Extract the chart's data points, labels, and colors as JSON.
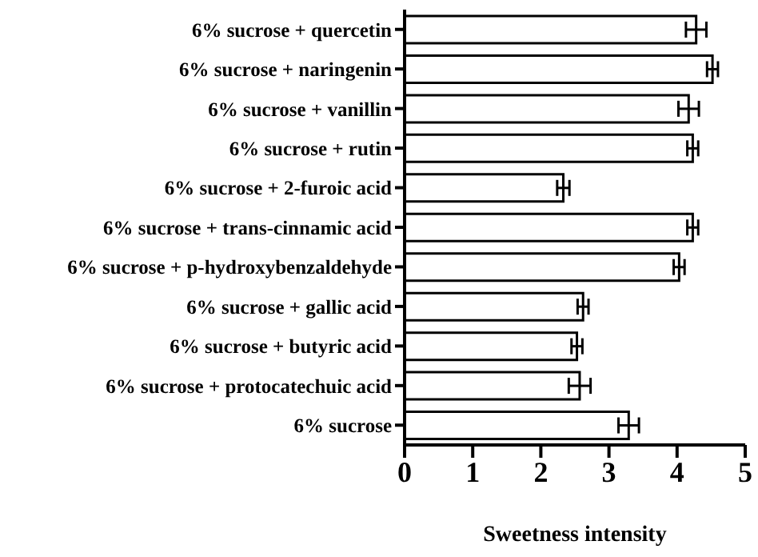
{
  "chart_data": {
    "type": "bar",
    "orientation": "horizontal",
    "xlabel": "Sweetness intensity",
    "categories": [
      "6% sucrose + quercetin",
      "6% sucrose + naringenin",
      "6% sucrose + vanillin",
      "6% sucrose + rutin",
      "6% sucrose + 2-furoic acid",
      "6% sucrose + trans-cinnamic acid",
      "6% sucrose + p-hydroxybenzaldehyde",
      "6% sucrose + gallic acid",
      "6% sucrose + butyric acid",
      "6% sucrose + protocatechuic acid",
      "6% sucrose"
    ],
    "values": [
      4.28,
      4.52,
      4.17,
      4.23,
      2.33,
      4.23,
      4.03,
      2.62,
      2.53,
      2.57,
      3.29
    ],
    "errors": [
      0.15,
      0.08,
      0.15,
      0.08,
      0.09,
      0.08,
      0.08,
      0.08,
      0.08,
      0.16,
      0.15
    ],
    "color": "#ffffff",
    "xlim": [
      0,
      5
    ],
    "xticks": [
      0,
      1,
      2,
      3,
      4,
      5
    ],
    "grid": false,
    "legend": false
  }
}
